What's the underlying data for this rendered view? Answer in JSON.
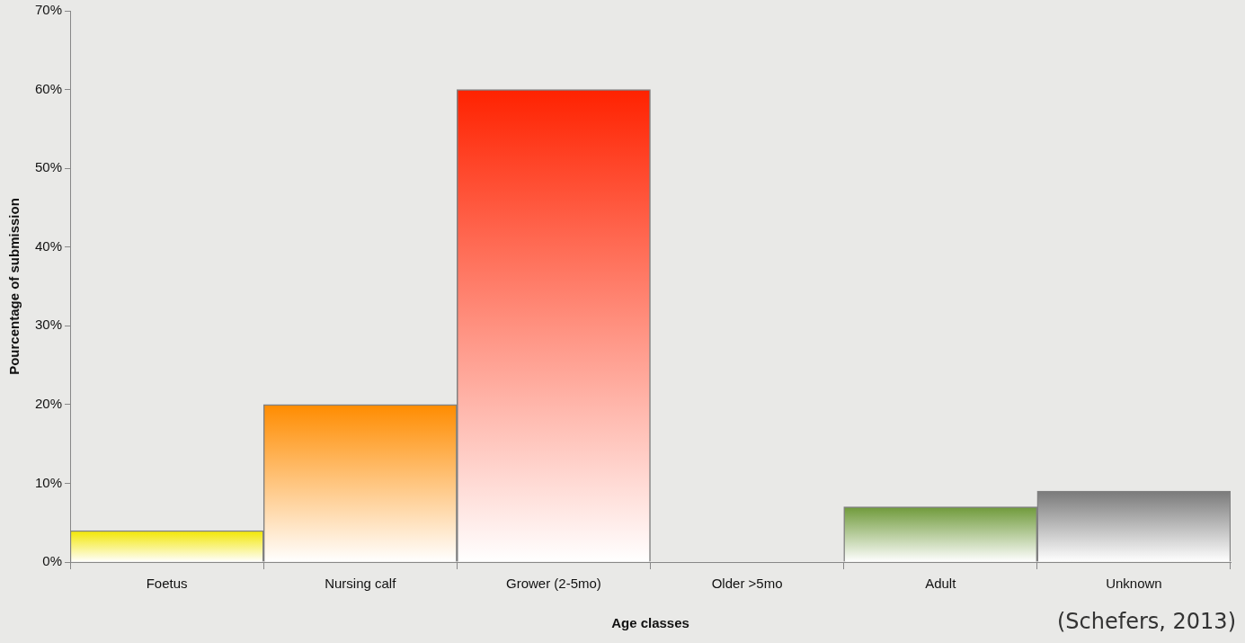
{
  "chart_data": {
    "type": "bar",
    "categories": [
      "Foetus",
      "Nursing calf",
      "Grower (2-5mo)",
      "Older >5mo",
      "Adult",
      "Unknown"
    ],
    "values": [
      4,
      20,
      60,
      0,
      7,
      9
    ],
    "colors": [
      "#f2e600",
      "#ff8c00",
      "#ff2200",
      "#cccccc",
      "#6f9a3a",
      "#7a7a7a"
    ],
    "y_label": "Pourcentage of submission",
    "x_label": "Age classes",
    "annotation": "(Schefers, 2013)",
    "ylim": [
      0,
      70
    ],
    "yticks": [
      {
        "value": 0,
        "label": "0%"
      },
      {
        "value": 10,
        "label": "10%"
      },
      {
        "value": 20,
        "label": "20%"
      },
      {
        "value": 30,
        "label": "30%"
      },
      {
        "value": 40,
        "label": "40%"
      },
      {
        "value": 50,
        "label": "50%"
      },
      {
        "value": 60,
        "label": "60%"
      },
      {
        "value": 70,
        "label": "70%"
      }
    ],
    "grid": false
  }
}
